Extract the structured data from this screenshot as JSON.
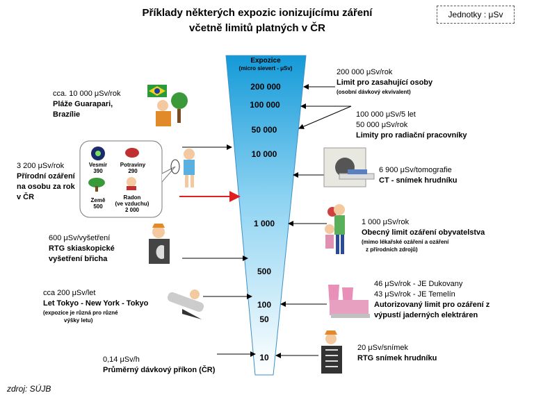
{
  "title": {
    "line1": "Příklady některých expozic ionizujícímu záření",
    "line2": "včetně limitů platných v ČR"
  },
  "units_label": "Jednotky : μSv",
  "scale": {
    "header": "Expozice",
    "subheader": "(micro sievert - μSv)",
    "values": [
      "200 000",
      "100 000",
      "50 000",
      "10 000",
      "1 000",
      "500",
      "100",
      "50",
      "10"
    ]
  },
  "left": {
    "guarapari": {
      "value": "cca. 10 000 μSv/rok",
      "line1": "Pláže Guarapari,",
      "line2": "Brazílie"
    },
    "natural": {
      "value": "3 200 μSv/rok",
      "line1": "Přírodní ozáření",
      "line2": "na osobu za rok",
      "line3": "v ČR",
      "items": [
        {
          "name": "Vesmír",
          "value": "390"
        },
        {
          "name": "Potraviny",
          "value": "290"
        },
        {
          "name": "Země",
          "value": "500"
        },
        {
          "name": "Radon",
          "sub": "(ve vzduchu)",
          "value": "2 000"
        }
      ]
    },
    "xray": {
      "value": "600 μSv/vyšetření",
      "line1": "RTG skiaskopické",
      "line2": "vyšetření břicha"
    },
    "flight": {
      "value": "cca 200 μSv/let",
      "line1": "Let Tokyo - New York - Tokyo",
      "note1": "(expozice je různá pro různé",
      "note2": "výšky letu)"
    },
    "background": {
      "value": "0,14 μSv/h",
      "line1": "Průměrný dávkový příkon (ČR)"
    }
  },
  "right": {
    "limit200k": {
      "value": "200 000 μSv/rok",
      "line1": "Limit pro zasahující osoby",
      "note": "(osobní dávkový ekvivalent)"
    },
    "limitWorkers": {
      "value1": "100 000 μSv/5 let",
      "value2": "50 000 μSv/rok",
      "line1": "Limity pro radiační pracovníky"
    },
    "ct": {
      "value": "6 900 μSv/tomografie",
      "line1": "CT - snímek hrudníku"
    },
    "public": {
      "value": "1 000 μSv/rok",
      "line1": "Obecný limit ozáření obyvatelstva",
      "note1": "(mimo lékařské ozáření a ozáření",
      "note2": "z přírodních zdrojů)"
    },
    "npp": {
      "value1": "46 μSv/rok - JE Dukovany",
      "value2": "43 μSv/rok - JE Temelín",
      "line1": "Autorizovaný limit pro ozáření z",
      "line2": "výpustí jaderných elektráren"
    },
    "chest": {
      "value": "20 μSv/snímek",
      "line1": "RTG snímek hrudníku"
    }
  },
  "source": "zdroj: SÚJB",
  "colors": {
    "funnel_top": "#1aa3e0",
    "funnel_bottom": "#ffffff",
    "arrow": "#e02020"
  }
}
